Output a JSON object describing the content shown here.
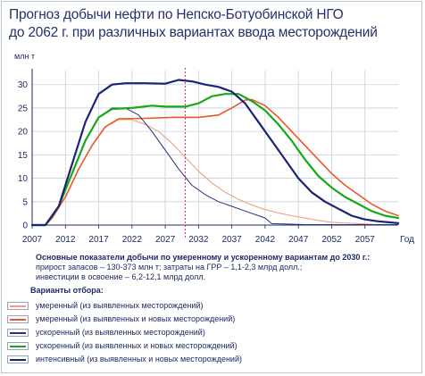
{
  "title_lines": [
    "Прогноз добычи нефти по Непско-Ботуобинской НГО",
    "до 2062 г. при различных вариантах ввода месторождений"
  ],
  "info": {
    "heading": "Основные показатели добычи по умеренному и ускоренному вариантам до 2030 г.:",
    "line1": "прирост запасов – 130-373 млн т; затраты на ГРР – 1,1-2,3 млрд долл.;",
    "line2": "инвестиции в освоение – 6,2-12,1 млрд долл."
  },
  "legend": {
    "heading": "Варианты отбора:",
    "items": [
      {
        "label": "умеренный (из выявленных месторождений)",
        "color": "#f0a080"
      },
      {
        "label": "умеренный (из выявленных и новых месторождений)",
        "color": "#e8582a"
      },
      {
        "label": "ускоренный (из выявленных месторождений)",
        "color": "#27337a"
      },
      {
        "label": "ускоренный (из выявленных и новых месторождений)",
        "color": "#17a817"
      },
      {
        "label": "интенсивный (из выявленных и новых месторождений)",
        "color": "#1a2376"
      }
    ]
  },
  "chart_data": {
    "type": "line",
    "ylabel": "млн т",
    "xlabel": "Год",
    "xlim": [
      2007,
      2062
    ],
    "ylim": [
      0,
      33
    ],
    "xticks": [
      2007,
      2012,
      2017,
      2022,
      2027,
      2032,
      2037,
      2042,
      2047,
      2052,
      2057
    ],
    "yticks": [
      0,
      5,
      10,
      15,
      20,
      25,
      30
    ],
    "grid": true,
    "marker_line_x": 2030,
    "marker_line_color": "#d6287a",
    "series": [
      {
        "name": "умеренный (из выявленных месторождений)",
        "color": "#f0a080",
        "width": 1.1,
        "points": [
          [
            2007,
            0
          ],
          [
            2009,
            0
          ],
          [
            2010,
            1.5
          ],
          [
            2012,
            6
          ],
          [
            2014,
            12
          ],
          [
            2016,
            17
          ],
          [
            2018,
            21
          ],
          [
            2020,
            22.5
          ],
          [
            2022,
            22.5
          ],
          [
            2024,
            21.5
          ],
          [
            2026,
            20
          ],
          [
            2028,
            17.5
          ],
          [
            2030,
            14.5
          ],
          [
            2032,
            11.5
          ],
          [
            2034,
            9
          ],
          [
            2036,
            7
          ],
          [
            2038,
            5.5
          ],
          [
            2040,
            4.3
          ],
          [
            2042,
            3.3
          ],
          [
            2044,
            2.6
          ],
          [
            2046,
            2
          ],
          [
            2048,
            1.5
          ],
          [
            2050,
            1
          ],
          [
            2052,
            0.6
          ],
          [
            2056,
            0.3
          ],
          [
            2058,
            0.2
          ]
        ]
      },
      {
        "name": "умеренный (из выявленных и новых месторождений)",
        "color": "#e8582a",
        "width": 1.6,
        "points": [
          [
            2007,
            0
          ],
          [
            2009,
            0
          ],
          [
            2010,
            1.5
          ],
          [
            2012,
            6
          ],
          [
            2014,
            12
          ],
          [
            2016,
            17
          ],
          [
            2018,
            21
          ],
          [
            2020,
            22.7
          ],
          [
            2024,
            22.8
          ],
          [
            2028,
            23
          ],
          [
            2032,
            23
          ],
          [
            2035,
            23.5
          ],
          [
            2037,
            25
          ],
          [
            2039,
            26.7
          ],
          [
            2040,
            26.8
          ],
          [
            2042,
            25.5
          ],
          [
            2044,
            23
          ],
          [
            2046,
            20
          ],
          [
            2048,
            17
          ],
          [
            2050,
            14
          ],
          [
            2052,
            11
          ],
          [
            2054,
            8.5
          ],
          [
            2056,
            6.5
          ],
          [
            2058,
            4.5
          ],
          [
            2060,
            3
          ],
          [
            2062,
            2
          ]
        ]
      },
      {
        "name": "ускоренный (из выявленных месторождений)",
        "color": "#27337a",
        "width": 1.0,
        "points": [
          [
            2007,
            0
          ],
          [
            2009,
            0
          ],
          [
            2011,
            4
          ],
          [
            2013,
            11
          ],
          [
            2015,
            18
          ],
          [
            2017,
            23
          ],
          [
            2019,
            25
          ],
          [
            2021,
            25
          ],
          [
            2023,
            23.5
          ],
          [
            2025,
            20
          ],
          [
            2027,
            16
          ],
          [
            2029,
            12
          ],
          [
            2031,
            8.5
          ],
          [
            2033,
            6.5
          ],
          [
            2035,
            5
          ],
          [
            2037,
            4
          ],
          [
            2039,
            3
          ],
          [
            2041,
            2
          ],
          [
            2042,
            1.5
          ],
          [
            2043,
            0.3
          ],
          [
            2048,
            0.1
          ],
          [
            2062,
            0.1
          ]
        ]
      },
      {
        "name": "ускоренный (из выявленных и новых месторождений)",
        "color": "#17a817",
        "width": 2.2,
        "points": [
          [
            2007,
            0
          ],
          [
            2009,
            0
          ],
          [
            2011,
            4
          ],
          [
            2013,
            11
          ],
          [
            2015,
            18
          ],
          [
            2017,
            23
          ],
          [
            2019,
            24.8
          ],
          [
            2022,
            25
          ],
          [
            2025,
            25.5
          ],
          [
            2027,
            25.3
          ],
          [
            2030,
            25.3
          ],
          [
            2032,
            26
          ],
          [
            2034,
            27.5
          ],
          [
            2036,
            28
          ],
          [
            2038,
            28
          ],
          [
            2040,
            26.5
          ],
          [
            2042,
            24.5
          ],
          [
            2044,
            21.5
          ],
          [
            2046,
            18
          ],
          [
            2048,
            14
          ],
          [
            2050,
            10.5
          ],
          [
            2052,
            8
          ],
          [
            2054,
            6
          ],
          [
            2056,
            4.5
          ],
          [
            2058,
            3
          ],
          [
            2060,
            2
          ],
          [
            2062,
            1.5
          ]
        ]
      },
      {
        "name": "интенсивный (из выявленных и новых месторождений)",
        "color": "#1a2376",
        "width": 2.2,
        "points": [
          [
            2007,
            0
          ],
          [
            2009,
            0
          ],
          [
            2011,
            4
          ],
          [
            2013,
            13
          ],
          [
            2015,
            22
          ],
          [
            2017,
            28
          ],
          [
            2019,
            30
          ],
          [
            2021,
            30.3
          ],
          [
            2024,
            30.3
          ],
          [
            2027,
            30.2
          ],
          [
            2029,
            31
          ],
          [
            2031,
            30.7
          ],
          [
            2033,
            30
          ],
          [
            2035,
            29.5
          ],
          [
            2037,
            28.5
          ],
          [
            2039,
            26
          ],
          [
            2041,
            22
          ],
          [
            2043,
            18
          ],
          [
            2045,
            14
          ],
          [
            2047,
            10
          ],
          [
            2049,
            7
          ],
          [
            2051,
            5
          ],
          [
            2053,
            3.5
          ],
          [
            2055,
            2
          ],
          [
            2057,
            1.2
          ],
          [
            2059,
            0.8
          ],
          [
            2062,
            0.4
          ]
        ]
      }
    ]
  }
}
